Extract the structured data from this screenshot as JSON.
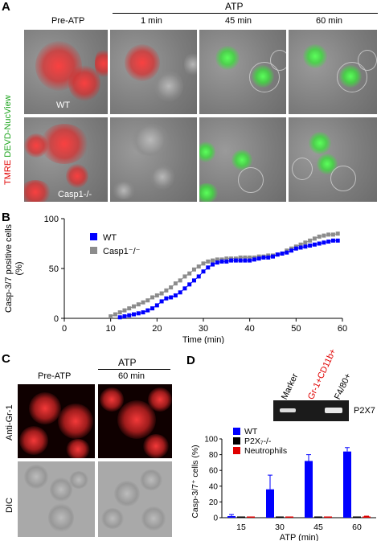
{
  "panelA": {
    "letter": "A",
    "atp_header": "ATP",
    "col_labels": [
      "Pre-ATP",
      "1 min",
      "45 min",
      "60 min"
    ],
    "side_label_red": "TMRE",
    "side_label_green": "DEVD-NucView",
    "row_labels": [
      "WT",
      "Casp1-/-"
    ]
  },
  "panelB": {
    "letter": "B"
  },
  "panelC": {
    "letter": "C",
    "atp_header": "ATP",
    "col_labels": [
      "Pre-ATP",
      "60 min"
    ],
    "row_labels": [
      "Anti-Gr-1",
      "DIC"
    ]
  },
  "panelD": {
    "letter": "D",
    "gel_labels": [
      "Marker",
      "Gr-1+CD11b+",
      "F4/80+"
    ],
    "gel_band_label": "P2X7",
    "colors": {
      "red_label": "#e00000"
    }
  },
  "chart_data": [
    {
      "type": "line",
      "title": "",
      "xlabel": "Time (min)",
      "ylabel": "Casp-3/7 positive cells (%)",
      "xlim": [
        0,
        60
      ],
      "ylim": [
        0,
        100
      ],
      "xticks": [
        0,
        10,
        20,
        30,
        40,
        50,
        60
      ],
      "yticks": [
        0,
        50,
        100
      ],
      "legend_position": "upper-left",
      "series": [
        {
          "name": "WT",
          "color": "#0000ff",
          "marker": "square",
          "x": [
            12,
            13,
            14,
            15,
            16,
            17,
            18,
            19,
            20,
            21,
            22,
            23,
            24,
            25,
            26,
            27,
            28,
            29,
            30,
            31,
            32,
            33,
            34,
            35,
            36,
            37,
            38,
            39,
            40,
            41,
            42,
            43,
            44,
            45,
            46,
            47,
            48,
            49,
            50,
            51,
            52,
            53,
            54,
            55,
            56,
            57,
            58,
            59
          ],
          "y": [
            1,
            2,
            3,
            4,
            5,
            6,
            8,
            10,
            13,
            17,
            20,
            21,
            23,
            26,
            30,
            34,
            38,
            42,
            47,
            51,
            54,
            56,
            57,
            57,
            58,
            58,
            58,
            58,
            58,
            59,
            60,
            61,
            61,
            62,
            64,
            65,
            66,
            68,
            70,
            71,
            72,
            73,
            74,
            75,
            76,
            77,
            78,
            78
          ]
        },
        {
          "name": "Casp1⁻/⁻",
          "color": "#8c8c8c",
          "marker": "square",
          "x": [
            10,
            11,
            12,
            13,
            14,
            15,
            16,
            17,
            18,
            19,
            20,
            21,
            22,
            23,
            24,
            25,
            26,
            27,
            28,
            29,
            30,
            31,
            32,
            33,
            34,
            35,
            36,
            37,
            38,
            39,
            40,
            41,
            42,
            43,
            44,
            45,
            46,
            47,
            48,
            49,
            50,
            51,
            52,
            53,
            54,
            55,
            56,
            57,
            58,
            59
          ],
          "y": [
            2,
            4,
            6,
            8,
            10,
            12,
            14,
            16,
            18,
            21,
            23,
            25,
            28,
            31,
            35,
            38,
            42,
            45,
            49,
            52,
            55,
            57,
            58,
            59,
            59,
            60,
            60,
            60,
            61,
            61,
            61,
            61,
            62,
            62,
            63,
            63,
            64,
            65,
            68,
            70,
            72,
            74,
            76,
            78,
            80,
            82,
            83,
            84,
            84,
            85
          ]
        }
      ]
    },
    {
      "type": "bar",
      "title": "",
      "xlabel": "ATP (min)",
      "ylabel": "Casp-3/7⁺ cells (%)",
      "categories": [
        "15",
        "30",
        "45",
        "60"
      ],
      "ylim": [
        0,
        100
      ],
      "yticks": [
        0,
        20,
        40,
        60,
        80,
        100
      ],
      "legend_position": "top-left",
      "series": [
        {
          "name": "WT",
          "color": "#0000ff",
          "values": [
            2,
            36,
            72,
            84
          ],
          "errors": [
            2,
            18,
            8,
            5
          ]
        },
        {
          "name": "P2X₇-/-",
          "color": "#000000",
          "values": [
            0,
            0,
            0,
            0
          ],
          "errors": [
            0,
            0,
            0,
            0
          ]
        },
        {
          "name": "Neutrophils",
          "color": "#e00000",
          "values": [
            0,
            0,
            0,
            1
          ],
          "errors": [
            0,
            0,
            0,
            1
          ]
        }
      ]
    }
  ]
}
